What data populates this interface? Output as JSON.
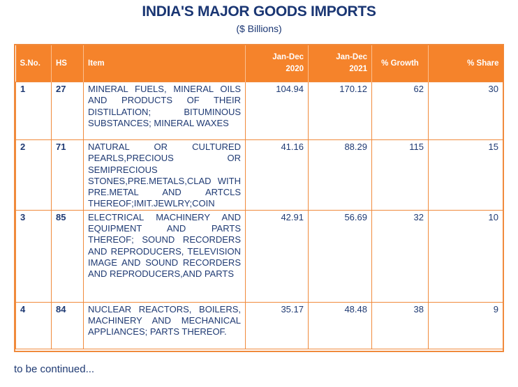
{
  "title": "INDIA'S MAJOR GOODS IMPORTS",
  "subtitle": "($ Billions)",
  "table": {
    "headers": {
      "sno": "S.No.",
      "hs": "HS",
      "item": "Item",
      "y2020_line1": "Jan-Dec",
      "y2020_line2": "2020",
      "y2021_line1": "Jan-Dec",
      "y2021_line2": "2021",
      "growth": "% Growth",
      "share": "% Share"
    },
    "rows": [
      {
        "sno": "1",
        "hs": "27",
        "item": "MINERAL FUELS, MINERAL OILS AND PRODUCTS OF THEIR DISTILLATION; BITUMINOUS SUBSTANCES; MINERAL WAXES",
        "y2020": "104.94",
        "y2021": "170.12",
        "growth": "62",
        "share": "30"
      },
      {
        "sno": "2",
        "hs": "71",
        "item": "NATURAL OR CULTURED PEARLS,PRECIOUS OR SEMIPRECIOUS STONES,PRE.METALS,CLAD WITH PRE.METAL AND ARTCLS THEREOF;IMIT.JEWLRY;COIN",
        "y2020": "41.16",
        "y2021": "88.29",
        "growth": "115",
        "share": "15"
      },
      {
        "sno": "3",
        "hs": "85",
        "item": "ELECTRICAL MACHINERY AND EQUIPMENT AND PARTS THEREOF; SOUND RECORDERS AND REPRODUCERS, TELEVISION IMAGE AND SOUND RECORDERS AND REPRODUCERS,AND PARTS",
        "y2020": "42.91",
        "y2021": "56.69",
        "growth": "32",
        "share": "10"
      },
      {
        "sno": "4",
        "hs": "84",
        "item": "NUCLEAR REACTORS, BOILERS, MACHINERY AND MECHANICAL APPLIANCES; PARTS THEREOF.",
        "y2020": "35.17",
        "y2021": "48.48",
        "growth": "38",
        "share": "9"
      }
    ]
  },
  "footer_note": "to be continued...",
  "colors": {
    "header_bg": "#f5832b",
    "border": "#f08a3c",
    "text": "#1f3a73"
  }
}
